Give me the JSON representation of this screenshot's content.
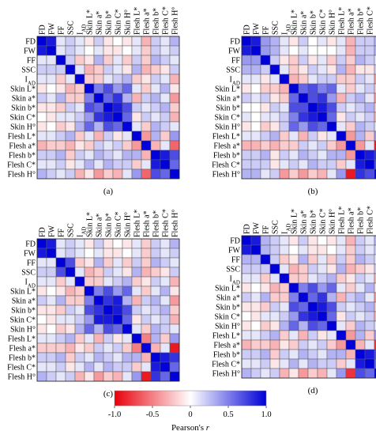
{
  "labels": [
    "FD",
    "FW",
    "FF",
    "SSC",
    "I_AD",
    "Skin L*",
    "Skin a*",
    "Skin b*",
    "Skin C*",
    "Skin H°",
    "Flesh L*",
    "Flesh a*",
    "Flesh b*",
    "Flesh C*",
    "Flesh H°"
  ],
  "panel_captions": [
    "(a)",
    "(b)",
    "(c)",
    "(d)"
  ],
  "colorbar": {
    "ticks": [
      "-1.0",
      "-0.5",
      "0",
      "0.5",
      "1.0"
    ],
    "label": "Pearson's ",
    "label_italic": "r",
    "colors": {
      "neg": "#e8000b",
      "mid": "#ffffff",
      "pos": "#0000d8"
    }
  },
  "chart_data": [
    {
      "type": "heatmap",
      "caption": "(a)",
      "vmin": -1,
      "vmax": 1,
      "rows": [
        "FD",
        "FW",
        "FF",
        "SSC",
        "I_AD",
        "Skin L*",
        "Skin a*",
        "Skin b*",
        "Skin C*",
        "Skin H°",
        "Flesh L*",
        "Flesh a*",
        "Flesh b*",
        "Flesh C*",
        "Flesh H°"
      ],
      "cols": [
        "FD",
        "FW",
        "FF",
        "SSC",
        "I_AD",
        "Skin L*",
        "Skin a*",
        "Skin b*",
        "Skin C*",
        "Skin H°",
        "Flesh L*",
        "Flesh a*",
        "Flesh b*",
        "Flesh C*",
        "Flesh H°"
      ],
      "values": [
        [
          1,
          0.9,
          0.1,
          0.2,
          0.1,
          -0.1,
          0.2,
          -0.1,
          0,
          -0.1,
          0.1,
          -0.3,
          0.2,
          0.1,
          0.3
        ],
        [
          0.9,
          1,
          0.1,
          0.2,
          0.1,
          0,
          0.1,
          -0.1,
          -0.1,
          0,
          0.1,
          -0.2,
          0.2,
          0.1,
          0.2
        ],
        [
          0.1,
          0.1,
          1,
          0.2,
          -0.2,
          -0.1,
          0.3,
          -0.2,
          0.1,
          -0.2,
          0.2,
          -0.2,
          0.3,
          0.2,
          0.1
        ],
        [
          0.2,
          0.2,
          0.2,
          1,
          0.1,
          -0.3,
          -0.2,
          0.2,
          0.1,
          -0.1,
          0.3,
          -0.3,
          -0.2,
          -0.1,
          0.2
        ],
        [
          0.1,
          0.1,
          -0.2,
          0.1,
          1,
          -0.2,
          -0.2,
          0.1,
          0.2,
          0.3,
          -0.2,
          -0.1,
          0.2,
          0.1,
          -0.3
        ],
        [
          -0.1,
          0,
          -0.1,
          -0.3,
          -0.2,
          1,
          0.5,
          0.7,
          0.4,
          0.6,
          0.1,
          -0.2,
          0.1,
          0.3,
          -0.1
        ],
        [
          0.2,
          0.1,
          0.3,
          -0.2,
          -0.2,
          0.5,
          1,
          0.6,
          0.8,
          0.3,
          -0.3,
          0.2,
          0.3,
          0.1,
          -0.4
        ],
        [
          -0.1,
          -0.1,
          -0.2,
          0.2,
          0.1,
          0.7,
          0.6,
          1,
          0.9,
          0.7,
          0.2,
          0.1,
          0.2,
          0.3,
          -0.2
        ],
        [
          0,
          -0.1,
          0.1,
          0.1,
          0.2,
          0.4,
          0.8,
          0.9,
          1,
          0.6,
          -0.1,
          0.2,
          0.1,
          0.2,
          -0.3
        ],
        [
          -0.1,
          0,
          -0.2,
          -0.1,
          0.3,
          0.6,
          0.3,
          0.7,
          0.6,
          1,
          0.1,
          -0.2,
          0.3,
          0.2,
          0.1
        ],
        [
          0.1,
          0.1,
          0.2,
          0.3,
          -0.2,
          0.1,
          -0.3,
          0.2,
          -0.1,
          0.1,
          1,
          -0.4,
          0.3,
          -0.2,
          0.4
        ],
        [
          -0.3,
          -0.2,
          -0.2,
          -0.3,
          -0.1,
          -0.2,
          0.2,
          0.1,
          0.2,
          -0.2,
          -0.4,
          1,
          -0.3,
          0.1,
          -0.6
        ],
        [
          0.2,
          0.2,
          0.3,
          -0.2,
          0.2,
          0.1,
          0.3,
          0.2,
          0.1,
          0.3,
          0.3,
          -0.3,
          1,
          0.9,
          0.7
        ],
        [
          0.1,
          0.1,
          0.2,
          -0.1,
          0.1,
          0.3,
          0.1,
          0.3,
          0.2,
          0.2,
          -0.2,
          0.1,
          0.9,
          1,
          0.6
        ],
        [
          0.3,
          0.2,
          0.1,
          0.2,
          -0.3,
          -0.1,
          -0.4,
          -0.2,
          -0.3,
          0.1,
          0.4,
          -0.6,
          0.7,
          0.6,
          1
        ]
      ]
    },
    {
      "type": "heatmap",
      "caption": "(b)",
      "vmin": -1,
      "vmax": 1,
      "rows": [
        "FD",
        "FW",
        "FF",
        "SSC",
        "I_AD",
        "Skin L*",
        "Skin a*",
        "Skin b*",
        "Skin C*",
        "Skin H°",
        "Flesh L*",
        "Flesh a*",
        "Flesh b*",
        "Flesh C*",
        "Flesh H°"
      ],
      "cols": [
        "FD",
        "FW",
        "FF",
        "SSC",
        "I_AD",
        "Skin L*",
        "Skin a*",
        "Skin b*",
        "Skin C*",
        "Skin H°",
        "Flesh L*",
        "Flesh a*",
        "Flesh b*",
        "Flesh C*",
        "Flesh H°"
      ],
      "values": [
        [
          1,
          0.9,
          0.4,
          0.3,
          0.1,
          -0.1,
          0.2,
          0,
          0.1,
          -0.1,
          0.1,
          -0.3,
          0.2,
          0.2,
          0.3
        ],
        [
          0.9,
          1,
          0.4,
          0.3,
          0.1,
          0,
          0.1,
          0,
          0,
          0,
          0.1,
          -0.3,
          0.2,
          0.2,
          0.3
        ],
        [
          0.4,
          0.4,
          1,
          0.2,
          -0.1,
          -0.2,
          0.2,
          -0.1,
          0.1,
          -0.2,
          0.2,
          -0.2,
          0.3,
          0.2,
          0.1
        ],
        [
          0.3,
          0.3,
          0.2,
          1,
          0.1,
          -0.2,
          -0.1,
          0.2,
          0.1,
          -0.1,
          0.3,
          -0.3,
          -0.1,
          -0.1,
          0.2
        ],
        [
          0.1,
          0.1,
          -0.1,
          0.1,
          1,
          -0.3,
          -0.2,
          0.1,
          0.2,
          0.2,
          -0.2,
          -0.2,
          0.2,
          0.1,
          -0.4
        ],
        [
          -0.1,
          0,
          -0.2,
          -0.2,
          -0.3,
          1,
          0.6,
          0.7,
          0.5,
          0.6,
          0.1,
          -0.2,
          0.1,
          0.2,
          -0.2
        ],
        [
          0.2,
          0.1,
          0.2,
          -0.1,
          -0.2,
          0.6,
          1,
          0.7,
          0.8,
          0.4,
          -0.3,
          0.2,
          0.3,
          0.1,
          -0.4
        ],
        [
          0,
          0,
          -0.1,
          0.2,
          0.1,
          0.7,
          0.7,
          1,
          0.9,
          0.7,
          0.2,
          0.1,
          0.2,
          0.3,
          -0.2
        ],
        [
          0.1,
          0,
          0.1,
          0.1,
          0.2,
          0.5,
          0.8,
          0.9,
          1,
          0.6,
          -0.1,
          0.2,
          0.1,
          0.2,
          -0.3
        ],
        [
          -0.1,
          0,
          -0.2,
          -0.1,
          0.2,
          0.6,
          0.4,
          0.7,
          0.6,
          1,
          0.1,
          -0.2,
          0.3,
          0.2,
          0.1
        ],
        [
          0.1,
          0.1,
          0.2,
          0.3,
          -0.2,
          0.1,
          -0.3,
          0.2,
          -0.1,
          0.1,
          1,
          -0.4,
          0.3,
          -0.2,
          0.4
        ],
        [
          -0.3,
          -0.3,
          -0.2,
          -0.3,
          -0.2,
          -0.2,
          0.2,
          0.1,
          0.2,
          -0.2,
          -0.4,
          1,
          -0.4,
          0.1,
          -0.9
        ],
        [
          0.2,
          0.2,
          0.3,
          -0.1,
          0.2,
          0.1,
          0.3,
          0.2,
          0.1,
          0.3,
          0.3,
          -0.4,
          1,
          0.9,
          0.8
        ],
        [
          0.2,
          0.2,
          0.2,
          -0.1,
          0.1,
          0.2,
          0.1,
          0.3,
          0.2,
          0.2,
          -0.2,
          0.1,
          0.9,
          1,
          0.7
        ],
        [
          0.3,
          0.3,
          0.1,
          0.2,
          -0.4,
          -0.2,
          -0.4,
          -0.2,
          -0.3,
          0.1,
          0.4,
          -0.9,
          0.8,
          0.7,
          1
        ]
      ]
    },
    {
      "type": "heatmap",
      "caption": "(c)",
      "vmin": -1,
      "vmax": 1,
      "rows": [
        "FD",
        "FW",
        "FF",
        "SSC",
        "I_AD",
        "Skin L*",
        "Skin a*",
        "Skin b*",
        "Skin C*",
        "Skin H°",
        "Flesh L*",
        "Flesh a*",
        "Flesh b*",
        "Flesh C*",
        "Flesh H°"
      ],
      "cols": [
        "FD",
        "FW",
        "FF",
        "SSC",
        "I_AD",
        "Skin L*",
        "Skin a*",
        "Skin b*",
        "Skin C*",
        "Skin H°",
        "Flesh L*",
        "Flesh a*",
        "Flesh b*",
        "Flesh C*",
        "Flesh H°"
      ],
      "values": [
        [
          1,
          0.9,
          0.1,
          0.2,
          0.1,
          -0.1,
          0.2,
          -0.1,
          0,
          -0.1,
          0.1,
          -0.2,
          0.2,
          0.1,
          0.3
        ],
        [
          0.9,
          1,
          0.1,
          0.2,
          0.1,
          0,
          0.1,
          -0.1,
          -0.1,
          0,
          0.1,
          -0.2,
          0.2,
          0.1,
          0.2
        ],
        [
          0.1,
          0.1,
          1,
          0.7,
          -0.2,
          -0.1,
          0.3,
          -0.2,
          0.1,
          -0.2,
          0.2,
          -0.2,
          0.3,
          0.2,
          0.1
        ],
        [
          0.2,
          0.2,
          0.7,
          1,
          0.1,
          -0.3,
          -0.2,
          0.2,
          0.1,
          -0.1,
          0.3,
          -0.3,
          -0.2,
          -0.1,
          0.2
        ],
        [
          0.1,
          0.1,
          -0.2,
          0.1,
          1,
          -0.2,
          -0.2,
          0.1,
          0.2,
          0.3,
          -0.2,
          -0.1,
          0.2,
          0.1,
          -0.3
        ],
        [
          -0.1,
          0,
          -0.1,
          -0.3,
          -0.2,
          1,
          0.5,
          0.7,
          0.4,
          0.6,
          0.1,
          -0.2,
          0.1,
          0.3,
          -0.1
        ],
        [
          0.2,
          0.1,
          0.3,
          -0.2,
          -0.2,
          0.5,
          1,
          0.8,
          0.9,
          0.3,
          -0.3,
          0.2,
          0.3,
          0.1,
          -0.4
        ],
        [
          -0.1,
          -0.1,
          -0.2,
          0.2,
          0.1,
          0.7,
          0.8,
          1,
          0.9,
          0.7,
          0.2,
          0.1,
          0.2,
          0.3,
          -0.2
        ],
        [
          0,
          -0.1,
          0.1,
          0.1,
          0.2,
          0.4,
          0.9,
          0.9,
          1,
          0.6,
          -0.1,
          0.2,
          0.1,
          0.2,
          -0.3
        ],
        [
          -0.1,
          0,
          -0.2,
          -0.1,
          0.3,
          0.6,
          0.3,
          0.7,
          0.6,
          1,
          0.1,
          -0.2,
          0.3,
          0.2,
          0.1
        ],
        [
          0.1,
          0.1,
          0.2,
          0.3,
          -0.2,
          0.1,
          -0.3,
          0.2,
          -0.1,
          0.1,
          1,
          -0.5,
          0.3,
          -0.2,
          0.4
        ],
        [
          -0.2,
          -0.2,
          -0.2,
          -0.3,
          -0.1,
          -0.2,
          0.2,
          0.1,
          0.2,
          -0.2,
          -0.5,
          1,
          -0.3,
          0.1,
          -0.9
        ],
        [
          0.2,
          0.2,
          0.3,
          -0.2,
          0.2,
          0.1,
          0.3,
          0.2,
          0.1,
          0.3,
          0.3,
          -0.3,
          1,
          0.9,
          0.8
        ],
        [
          0.1,
          0.1,
          0.2,
          -0.1,
          0.1,
          0.3,
          0.1,
          0.3,
          0.2,
          0.2,
          -0.2,
          0.1,
          0.9,
          1,
          0.6
        ],
        [
          0.3,
          0.2,
          0.1,
          0.2,
          -0.3,
          -0.1,
          -0.4,
          -0.2,
          -0.3,
          0.1,
          0.4,
          -0.9,
          0.8,
          0.6,
          1
        ]
      ]
    },
    {
      "type": "heatmap",
      "caption": "(d)",
      "vmin": -1,
      "vmax": 1,
      "rows": [
        "FD",
        "FW",
        "FF",
        "SSC",
        "I_AD",
        "Skin L*",
        "Skin a*",
        "Skin b*",
        "Skin C*",
        "Skin H°",
        "Flesh L*",
        "Flesh a*",
        "Flesh b*",
        "Flesh C*",
        "Flesh H°"
      ],
      "cols": [
        "FD",
        "FW",
        "FF",
        "SSC",
        "I_AD",
        "Skin L*",
        "Skin a*",
        "Skin b*",
        "Skin C*",
        "Skin H°",
        "Flesh L*",
        "Flesh a*",
        "Flesh b*",
        "Flesh C*",
        "Flesh H°"
      ],
      "values": [
        [
          1,
          0.9,
          0.3,
          0.2,
          0.1,
          -0.1,
          0.2,
          -0.1,
          0,
          -0.1,
          0.1,
          -0.3,
          0.2,
          0.1,
          0.3
        ],
        [
          0.9,
          1,
          0.3,
          0.2,
          0.1,
          0,
          0.1,
          -0.1,
          -0.1,
          0,
          0.1,
          -0.2,
          0.2,
          0.1,
          0.2
        ],
        [
          0.3,
          0.3,
          1,
          0.2,
          -0.2,
          -0.1,
          0.3,
          -0.2,
          0.1,
          -0.2,
          0.2,
          -0.2,
          0.3,
          0.2,
          0.1
        ],
        [
          0.2,
          0.2,
          0.2,
          1,
          0.1,
          -0.3,
          -0.2,
          0.2,
          0.1,
          -0.1,
          0.3,
          -0.3,
          -0.2,
          -0.1,
          0.2
        ],
        [
          0.1,
          0.1,
          -0.2,
          0.1,
          1,
          -0.2,
          -0.2,
          0.1,
          0.2,
          0.3,
          -0.2,
          -0.1,
          0.2,
          0.1,
          -0.3
        ],
        [
          -0.1,
          0,
          -0.1,
          -0.3,
          -0.2,
          1,
          0.5,
          0.7,
          0.4,
          0.6,
          0.1,
          -0.2,
          0.1,
          0.3,
          -0.1
        ],
        [
          0.2,
          0.1,
          0.3,
          -0.2,
          -0.2,
          0.5,
          1,
          0.6,
          0.8,
          0.3,
          -0.3,
          0.2,
          0.3,
          0.1,
          -0.4
        ],
        [
          -0.1,
          -0.1,
          -0.2,
          0.2,
          0.1,
          0.7,
          0.6,
          1,
          0.9,
          0.7,
          0.2,
          0.1,
          0.2,
          0.3,
          -0.2
        ],
        [
          0,
          -0.1,
          0.1,
          0.1,
          0.2,
          0.4,
          0.8,
          0.9,
          1,
          0.6,
          -0.1,
          0.2,
          0.1,
          0.2,
          -0.3
        ],
        [
          -0.1,
          0,
          -0.2,
          -0.1,
          0.3,
          0.6,
          0.3,
          0.7,
          0.6,
          1,
          0.1,
          -0.2,
          0.3,
          0.2,
          0.1
        ],
        [
          0.1,
          0.1,
          0.2,
          0.3,
          -0.2,
          0.1,
          -0.3,
          0.2,
          -0.1,
          0.1,
          1,
          -0.4,
          0.3,
          -0.2,
          0.4
        ],
        [
          -0.3,
          -0.2,
          -0.2,
          -0.3,
          -0.1,
          -0.2,
          0.2,
          0.1,
          0.2,
          -0.2,
          -0.4,
          1,
          -0.3,
          0.1,
          -0.8
        ],
        [
          0.2,
          0.2,
          0.3,
          -0.2,
          0.2,
          0.1,
          0.3,
          0.2,
          0.1,
          0.3,
          0.3,
          -0.3,
          1,
          0.9,
          0.7
        ],
        [
          0.1,
          0.1,
          0.2,
          -0.1,
          0.1,
          0.3,
          0.1,
          0.3,
          0.2,
          0.2,
          -0.2,
          0.1,
          0.9,
          1,
          0.6
        ],
        [
          0.3,
          0.2,
          0.1,
          0.2,
          -0.3,
          -0.1,
          -0.4,
          -0.2,
          -0.3,
          0.1,
          0.4,
          -0.8,
          0.7,
          0.6,
          1
        ]
      ]
    }
  ]
}
